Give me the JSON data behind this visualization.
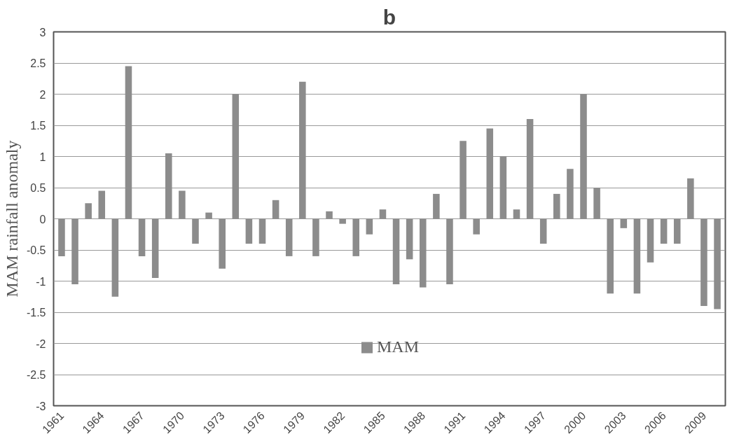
{
  "chart_data": {
    "type": "bar",
    "title": "b",
    "ylabel": "MAM rainfall anomaly",
    "categories": [
      "1961",
      null,
      null,
      "1964",
      null,
      null,
      "1967",
      null,
      null,
      "1970",
      null,
      null,
      "1973",
      null,
      null,
      "1976",
      null,
      null,
      "1979",
      null,
      null,
      "1982",
      null,
      null,
      "1985",
      null,
      null,
      "1988",
      null,
      null,
      "1991",
      null,
      null,
      "1994",
      null,
      null,
      "1997",
      null,
      null,
      "2000",
      null,
      null,
      "2003",
      null,
      null,
      "2006",
      null,
      null,
      "2009",
      null
    ],
    "series": [
      {
        "name": "MAM",
        "color": "#8c8c8c",
        "values": [
          -0.6,
          -1.05,
          0.25,
          0.45,
          -1.25,
          2.45,
          -0.6,
          -0.95,
          1.05,
          0.45,
          -0.4,
          0.1,
          -0.8,
          2.0,
          -0.4,
          -0.4,
          0.3,
          -0.6,
          2.2,
          -0.6,
          0.12,
          -0.08,
          -0.6,
          -0.25,
          0.15,
          -1.05,
          -0.65,
          -1.1,
          0.4,
          -1.05,
          1.25,
          -0.25,
          1.45,
          1.0,
          0.15,
          1.6,
          -0.4,
          0.4,
          0.8,
          2.0,
          0.5,
          -1.2,
          -0.15,
          -1.2,
          -0.7,
          -0.4,
          -0.4,
          0.65,
          -1.4,
          -1.45
        ]
      }
    ],
    "ylim": [
      -3,
      3
    ],
    "yticks": [
      -3,
      -2.5,
      -2,
      -1.5,
      -1,
      -0.5,
      0,
      0.5,
      1,
      1.5,
      2,
      2.5,
      3
    ],
    "grid": "y",
    "legend": "bottom"
  }
}
